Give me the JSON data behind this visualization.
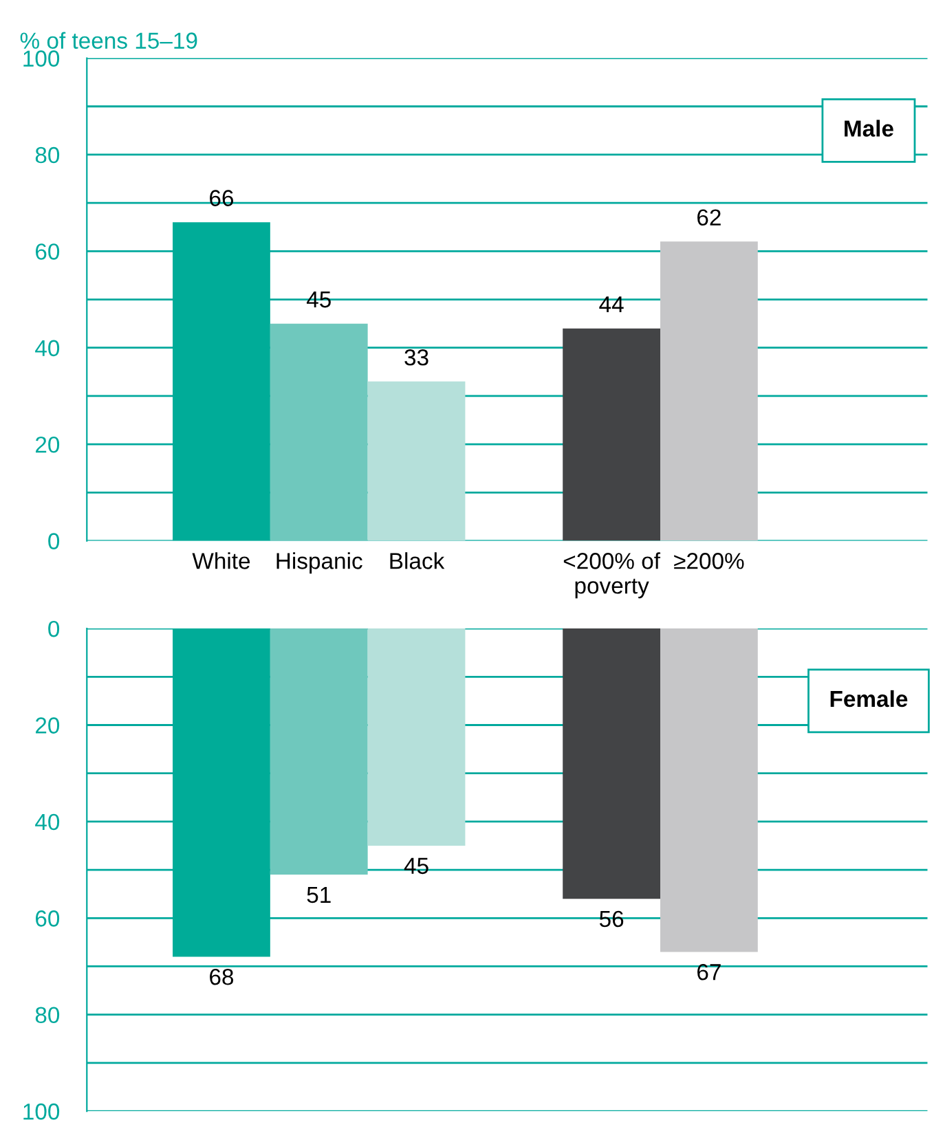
{
  "chart_data": [
    {
      "type": "bar",
      "ylabel": "% of teens 15–19",
      "annotations": [
        "Male"
      ],
      "categories": [
        "White",
        "Hispanic",
        "Black",
        null,
        "<200% of\npoverty",
        "≥200%"
      ],
      "values": [
        66,
        45,
        33,
        null,
        44,
        62
      ],
      "colors": [
        "#00ac98",
        "#6fc8bd",
        "#b5e0da",
        null,
        "#434446",
        "#c6c6c8"
      ],
      "ylim": [
        0,
        100
      ],
      "yticks": [
        0,
        {
          "value": 10,
          "label": null
        },
        20,
        {
          "value": 30,
          "label": null
        },
        40,
        {
          "value": 50,
          "label": null
        },
        60,
        {
          "value": 70,
          "label": null
        },
        80,
        {
          "value": 90,
          "label": null
        },
        100
      ],
      "grid": "y",
      "data_labels": true,
      "legend": false,
      "tick_labels": "xy"
    },
    {
      "type": "bar",
      "annotations": [
        "Female"
      ],
      "categories": [
        null,
        null,
        null,
        null,
        null,
        null
      ],
      "values": [
        68,
        51,
        45,
        null,
        56,
        67
      ],
      "colors": [
        "#00ac98",
        "#6fc8bd",
        "#b5e0da",
        null,
        "#434446",
        "#c6c6c8"
      ],
      "ylim": [
        100,
        0
      ],
      "yticks": [
        0,
        {
          "value": 10,
          "label": null
        },
        20,
        {
          "value": 30,
          "label": null
        },
        40,
        {
          "value": 50,
          "label": null
        },
        60,
        {
          "value": 70,
          "label": null
        },
        80,
        {
          "value": 90,
          "label": null
        },
        100
      ],
      "grid": "y",
      "data_labels": true,
      "legend": false,
      "tick_labels": "y"
    }
  ]
}
